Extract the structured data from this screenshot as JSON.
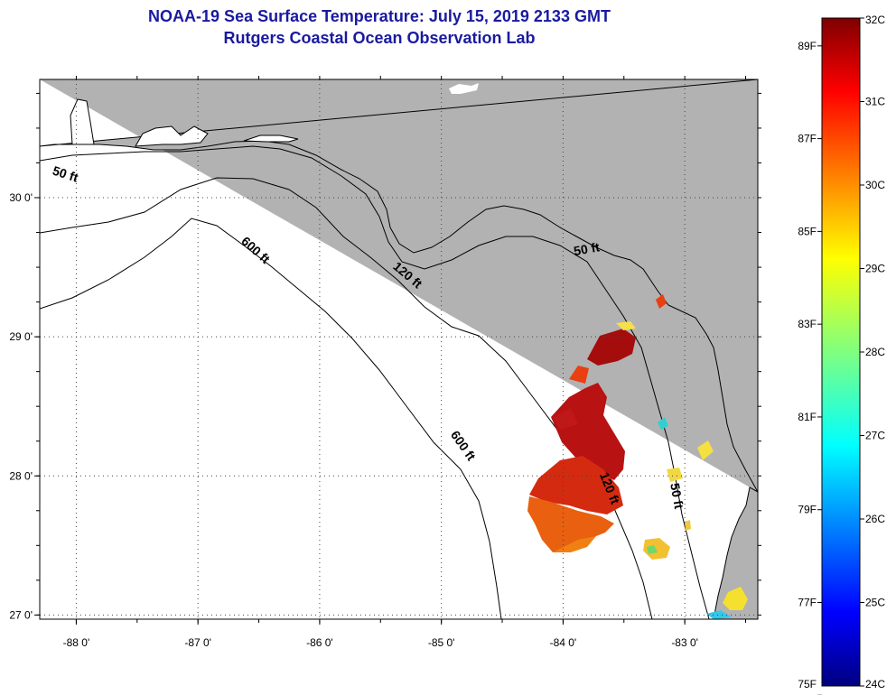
{
  "title": "NOAA-19 Sea Surface Temperature:  July 15, 2019 2133 GMT",
  "subtitle": "Rutgers Coastal Ocean Observation Lab",
  "map": {
    "lon_range": [
      -88.3,
      -82.4
    ],
    "lat_range": [
      26.97,
      30.85
    ],
    "lon_ticks": [
      {
        "value": -88,
        "label": "-88 0'"
      },
      {
        "value": -87,
        "label": "-87 0'"
      },
      {
        "value": -86,
        "label": "-86 0'"
      },
      {
        "value": -85,
        "label": "-85 0'"
      },
      {
        "value": -84,
        "label": "-84 0'"
      },
      {
        "value": -83,
        "label": "-83 0'"
      }
    ],
    "lat_ticks": [
      {
        "value": 30,
        "label": "30 0'"
      },
      {
        "value": 29,
        "label": "29 0'"
      },
      {
        "value": 28,
        "label": "28 0'"
      },
      {
        "value": 27,
        "label": "27 0'"
      }
    ],
    "depth_labels": [
      {
        "text": "50 ft",
        "lon": -88.1,
        "lat": 30.14,
        "rot": 18
      },
      {
        "text": "50 ft",
        "lon": -83.8,
        "lat": 29.6,
        "rot": -10
      },
      {
        "text": "120 ft",
        "lon": -85.3,
        "lat": 29.42,
        "rot": 40
      },
      {
        "text": "600 ft",
        "lon": -86.55,
        "lat": 29.6,
        "rot": 42
      },
      {
        "text": "600 ft",
        "lon": -84.85,
        "lat": 28.2,
        "rot": 55
      },
      {
        "text": "120 ft",
        "lon": -83.65,
        "lat": 27.9,
        "rot": 68
      },
      {
        "text": "50 ft",
        "lon": -83.1,
        "lat": 27.85,
        "rot": 80
      }
    ],
    "land_color": "#b2b2b2",
    "ocean_color": "#ffffff"
  },
  "colorbar": {
    "min_c": 24,
    "max_c": 32,
    "celsius_labels": [
      "32C",
      "31C",
      "30C",
      "29C",
      "28C",
      "27C",
      "26C",
      "25C",
      "24C"
    ],
    "fahrenheit_labels": [
      {
        "value": 89,
        "label": "89F"
      },
      {
        "value": 87,
        "label": "87F"
      },
      {
        "value": 85,
        "label": "85F"
      },
      {
        "value": 83,
        "label": "83F"
      },
      {
        "value": 81,
        "label": "81F"
      },
      {
        "value": 79,
        "label": "79F"
      },
      {
        "value": 77,
        "label": "77F"
      },
      {
        "value": 75,
        "label": "75F"
      }
    ]
  }
}
